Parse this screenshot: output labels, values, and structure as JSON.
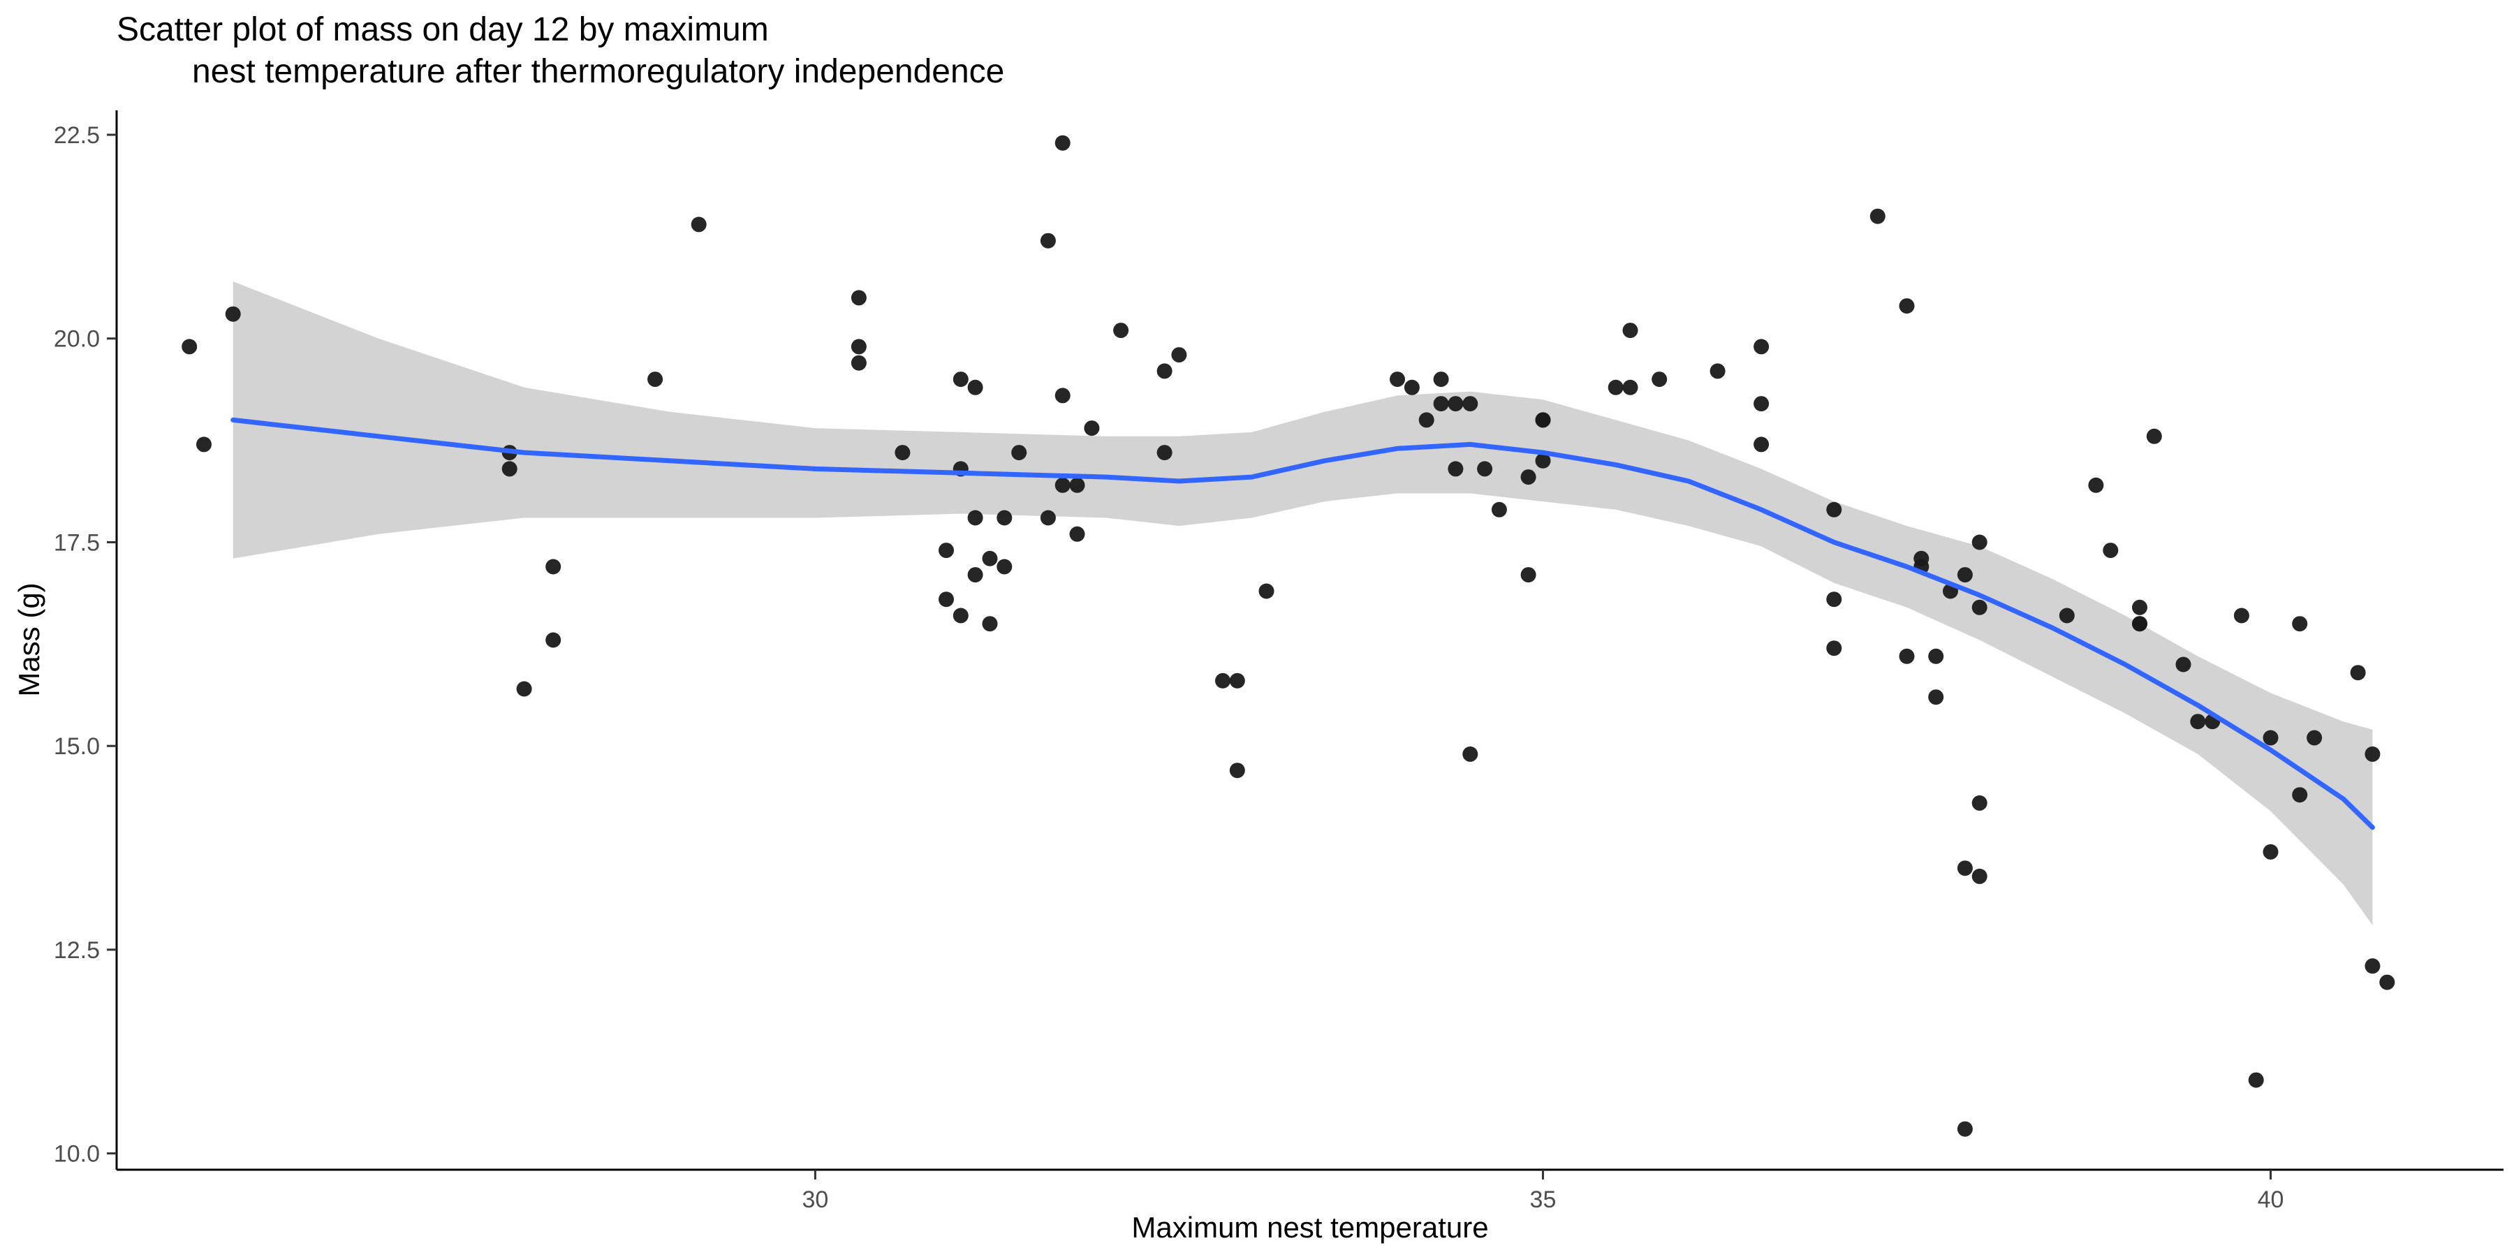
{
  "chart_data": {
    "type": "scatter",
    "title_lines": [
      "Scatter plot of mass on day 12 by maximum",
      "nest temperature after thermoregulatory independence"
    ],
    "xlabel": "Maximum nest temperature",
    "ylabel": "Mass (g)",
    "xlim": [
      25.2,
      41.6
    ],
    "ylim": [
      9.8,
      22.8
    ],
    "x_ticks": [
      30,
      35,
      40
    ],
    "x_tick_labels": [
      "30",
      "35",
      "40"
    ],
    "y_ticks": [
      10.0,
      12.5,
      15.0,
      17.5,
      20.0,
      22.5
    ],
    "y_tick_labels": [
      "10.0",
      "12.5",
      "15.0",
      "17.5",
      "20.0",
      "22.5"
    ],
    "grid": false,
    "point_color": "#1a1a1a",
    "smooth_color": "#3366FF",
    "ribbon_color": "#d3d3d3",
    "points": [
      {
        "x": 25.7,
        "y": 19.9
      },
      {
        "x": 25.8,
        "y": 18.7
      },
      {
        "x": 26.0,
        "y": 20.3
      },
      {
        "x": 27.9,
        "y": 18.4
      },
      {
        "x": 27.9,
        "y": 18.6
      },
      {
        "x": 28.0,
        "y": 15.7
      },
      {
        "x": 28.2,
        "y": 17.2
      },
      {
        "x": 28.2,
        "y": 16.3
      },
      {
        "x": 28.9,
        "y": 19.5
      },
      {
        "x": 29.2,
        "y": 21.4
      },
      {
        "x": 30.3,
        "y": 19.9
      },
      {
        "x": 30.3,
        "y": 19.7
      },
      {
        "x": 30.3,
        "y": 20.5
      },
      {
        "x": 30.6,
        "y": 18.6
      },
      {
        "x": 30.9,
        "y": 17.4
      },
      {
        "x": 30.9,
        "y": 16.8
      },
      {
        "x": 31.0,
        "y": 19.5
      },
      {
        "x": 31.0,
        "y": 18.4
      },
      {
        "x": 31.0,
        "y": 16.6
      },
      {
        "x": 31.1,
        "y": 19.4
      },
      {
        "x": 31.1,
        "y": 17.8
      },
      {
        "x": 31.1,
        "y": 17.1
      },
      {
        "x": 31.2,
        "y": 16.5
      },
      {
        "x": 31.2,
        "y": 17.3
      },
      {
        "x": 31.3,
        "y": 17.2
      },
      {
        "x": 31.3,
        "y": 17.8
      },
      {
        "x": 31.4,
        "y": 18.6
      },
      {
        "x": 31.6,
        "y": 21.2
      },
      {
        "x": 31.6,
        "y": 17.8
      },
      {
        "x": 31.7,
        "y": 18.2
      },
      {
        "x": 31.7,
        "y": 22.4
      },
      {
        "x": 31.7,
        "y": 19.3
      },
      {
        "x": 31.8,
        "y": 18.2
      },
      {
        "x": 31.8,
        "y": 17.6
      },
      {
        "x": 31.9,
        "y": 18.9
      },
      {
        "x": 32.1,
        "y": 20.1
      },
      {
        "x": 32.4,
        "y": 18.6
      },
      {
        "x": 32.4,
        "y": 19.6
      },
      {
        "x": 32.5,
        "y": 19.8
      },
      {
        "x": 32.8,
        "y": 15.8
      },
      {
        "x": 32.9,
        "y": 15.8
      },
      {
        "x": 32.9,
        "y": 14.7
      },
      {
        "x": 33.1,
        "y": 16.9
      },
      {
        "x": 34.0,
        "y": 19.5
      },
      {
        "x": 34.1,
        "y": 19.4
      },
      {
        "x": 34.2,
        "y": 19.0
      },
      {
        "x": 34.3,
        "y": 19.5
      },
      {
        "x": 34.3,
        "y": 19.2
      },
      {
        "x": 34.4,
        "y": 19.2
      },
      {
        "x": 34.4,
        "y": 18.4
      },
      {
        "x": 34.5,
        "y": 19.2
      },
      {
        "x": 34.5,
        "y": 14.9
      },
      {
        "x": 34.6,
        "y": 18.4
      },
      {
        "x": 34.7,
        "y": 17.9
      },
      {
        "x": 34.9,
        "y": 17.1
      },
      {
        "x": 34.9,
        "y": 18.3
      },
      {
        "x": 35.0,
        "y": 19.0
      },
      {
        "x": 35.0,
        "y": 18.5
      },
      {
        "x": 35.0,
        "y": 19.0
      },
      {
        "x": 35.5,
        "y": 19.4
      },
      {
        "x": 35.6,
        "y": 19.4
      },
      {
        "x": 35.6,
        "y": 20.1
      },
      {
        "x": 35.8,
        "y": 19.5
      },
      {
        "x": 36.2,
        "y": 19.6
      },
      {
        "x": 36.5,
        "y": 19.2
      },
      {
        "x": 36.5,
        "y": 19.9
      },
      {
        "x": 36.5,
        "y": 18.7
      },
      {
        "x": 37.0,
        "y": 16.2
      },
      {
        "x": 37.0,
        "y": 16.8
      },
      {
        "x": 37.0,
        "y": 17.9
      },
      {
        "x": 37.3,
        "y": 21.5
      },
      {
        "x": 37.5,
        "y": 20.4
      },
      {
        "x": 37.5,
        "y": 16.1
      },
      {
        "x": 37.6,
        "y": 17.2
      },
      {
        "x": 37.6,
        "y": 17.3
      },
      {
        "x": 37.7,
        "y": 15.6
      },
      {
        "x": 37.7,
        "y": 16.1
      },
      {
        "x": 37.8,
        "y": 16.9
      },
      {
        "x": 37.9,
        "y": 17.1
      },
      {
        "x": 37.9,
        "y": 13.5
      },
      {
        "x": 38.0,
        "y": 13.4
      },
      {
        "x": 38.0,
        "y": 16.7
      },
      {
        "x": 38.0,
        "y": 17.5
      },
      {
        "x": 38.0,
        "y": 14.3
      },
      {
        "x": 37.9,
        "y": 10.3
      },
      {
        "x": 38.6,
        "y": 16.6
      },
      {
        "x": 38.8,
        "y": 18.2
      },
      {
        "x": 38.9,
        "y": 17.4
      },
      {
        "x": 39.1,
        "y": 16.7
      },
      {
        "x": 39.1,
        "y": 16.5
      },
      {
        "x": 39.1,
        "y": 16.5
      },
      {
        "x": 39.2,
        "y": 18.8
      },
      {
        "x": 39.4,
        "y": 16.0
      },
      {
        "x": 39.5,
        "y": 15.3
      },
      {
        "x": 39.6,
        "y": 15.3
      },
      {
        "x": 39.8,
        "y": 16.6
      },
      {
        "x": 39.9,
        "y": 10.9
      },
      {
        "x": 40.0,
        "y": 13.7
      },
      {
        "x": 40.0,
        "y": 15.1
      },
      {
        "x": 40.2,
        "y": 14.4
      },
      {
        "x": 40.2,
        "y": 16.5
      },
      {
        "x": 40.3,
        "y": 15.1
      },
      {
        "x": 40.6,
        "y": 15.9
      },
      {
        "x": 40.7,
        "y": 12.3
      },
      {
        "x": 40.7,
        "y": 14.9
      },
      {
        "x": 40.8,
        "y": 12.1
      }
    ],
    "smooth": [
      {
        "x": 26.0,
        "y": 19.0,
        "lo": 17.3,
        "hi": 20.7
      },
      {
        "x": 27.0,
        "y": 18.8,
        "lo": 17.6,
        "hi": 20.0
      },
      {
        "x": 28.0,
        "y": 18.6,
        "lo": 17.8,
        "hi": 19.4
      },
      {
        "x": 29.0,
        "y": 18.5,
        "lo": 17.8,
        "hi": 19.1
      },
      {
        "x": 30.0,
        "y": 18.4,
        "lo": 17.8,
        "hi": 18.9
      },
      {
        "x": 31.0,
        "y": 18.35,
        "lo": 17.85,
        "hi": 18.85
      },
      {
        "x": 32.0,
        "y": 18.3,
        "lo": 17.8,
        "hi": 18.8
      },
      {
        "x": 32.5,
        "y": 18.25,
        "lo": 17.7,
        "hi": 18.8
      },
      {
        "x": 33.0,
        "y": 18.3,
        "lo": 17.8,
        "hi": 18.85
      },
      {
        "x": 33.5,
        "y": 18.5,
        "lo": 18.0,
        "hi": 19.1
      },
      {
        "x": 34.0,
        "y": 18.65,
        "lo": 18.1,
        "hi": 19.3
      },
      {
        "x": 34.5,
        "y": 18.7,
        "lo": 18.1,
        "hi": 19.35
      },
      {
        "x": 35.0,
        "y": 18.6,
        "lo": 18.0,
        "hi": 19.25
      },
      {
        "x": 35.5,
        "y": 18.45,
        "lo": 17.9,
        "hi": 19.0
      },
      {
        "x": 36.0,
        "y": 18.25,
        "lo": 17.7,
        "hi": 18.75
      },
      {
        "x": 36.5,
        "y": 17.9,
        "lo": 17.45,
        "hi": 18.4
      },
      {
        "x": 37.0,
        "y": 17.5,
        "lo": 17.0,
        "hi": 18.0
      },
      {
        "x": 37.5,
        "y": 17.2,
        "lo": 16.7,
        "hi": 17.7
      },
      {
        "x": 38.0,
        "y": 16.85,
        "lo": 16.3,
        "hi": 17.45
      },
      {
        "x": 38.5,
        "y": 16.45,
        "lo": 15.85,
        "hi": 17.05
      },
      {
        "x": 39.0,
        "y": 16.0,
        "lo": 15.4,
        "hi": 16.6
      },
      {
        "x": 39.5,
        "y": 15.5,
        "lo": 14.9,
        "hi": 16.1
      },
      {
        "x": 40.0,
        "y": 14.95,
        "lo": 14.2,
        "hi": 15.65
      },
      {
        "x": 40.5,
        "y": 14.35,
        "lo": 13.3,
        "hi": 15.3
      },
      {
        "x": 40.7,
        "y": 14.0,
        "lo": 12.8,
        "hi": 15.2
      }
    ]
  }
}
